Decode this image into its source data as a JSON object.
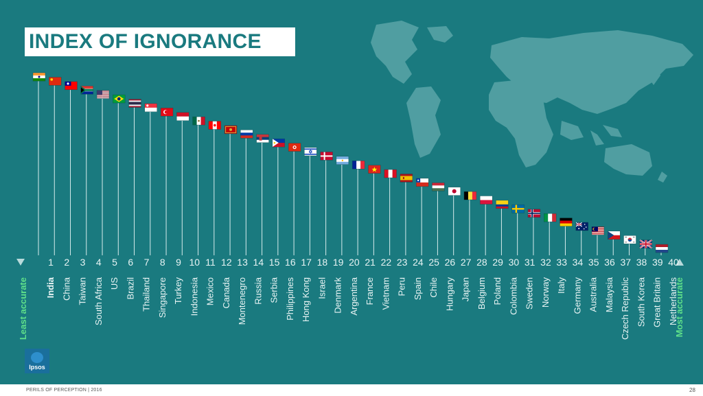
{
  "title": "INDEX OF IGNORANCE",
  "footer": "PERILS OF PERCEPTION | 2016",
  "page_number": "28",
  "logo_text": "Ipsos",
  "colors": {
    "background": "#1a7a7f",
    "map": "#5aa5a8",
    "accent": "#5fe08a",
    "text": "#e8f4f4"
  },
  "chart_data": {
    "type": "ranking",
    "title": "INDEX OF IGNORANCE",
    "start_label": "Least accurate",
    "end_label": "Most accurate",
    "ranks": [
      1,
      2,
      3,
      4,
      5,
      6,
      7,
      8,
      9,
      10,
      11,
      12,
      13,
      14,
      15,
      16,
      17,
      18,
      19,
      20,
      21,
      22,
      23,
      24,
      25,
      26,
      27,
      28,
      29,
      30,
      31,
      32,
      33,
      34,
      35,
      36,
      37,
      38,
      39,
      40
    ],
    "countries": [
      "India",
      "China",
      "Taiwan",
      "South Africa",
      "US",
      "Brazil",
      "Thailand",
      "Singapore",
      "Turkey",
      "Indonesia",
      "Mexico",
      "Canada",
      "Montenegro",
      "Russia",
      "Serbia",
      "Philippines",
      "Hong Kong",
      "Israel",
      "Denmark",
      "Argentina",
      "France",
      "Vietnam",
      "Peru",
      "Spain",
      "Chile",
      "Hungary",
      "Japan",
      "Belgium",
      "Poland",
      "Colombia",
      "Sweden",
      "Norway",
      "Italy",
      "Germany",
      "Australia",
      "Malaysia",
      "Czech Republic",
      "South Korea",
      "Great Britain",
      "Netherlands"
    ],
    "flags": [
      "flag-india",
      "flag-china",
      "flag-taiwan",
      "flag-south-africa",
      "flag-us",
      "flag-brazil",
      "flag-thailand",
      "flag-singapore",
      "flag-turkey",
      "flag-indonesia",
      "flag-mexico",
      "flag-canada",
      "flag-montenegro",
      "flag-russia",
      "flag-serbia",
      "flag-philippines",
      "flag-hong-kong",
      "flag-israel",
      "flag-denmark",
      "flag-argentina",
      "flag-france",
      "flag-vietnam",
      "flag-peru",
      "flag-spain",
      "flag-chile",
      "flag-hungary",
      "flag-japan",
      "flag-belgium",
      "flag-poland",
      "flag-colombia",
      "flag-sweden",
      "flag-norway",
      "flag-italy",
      "flag-germany",
      "flag-australia",
      "flag-malaysia",
      "flag-czech-republic",
      "flag-south-korea",
      "flag-great-britain",
      "flag-netherlands"
    ]
  }
}
